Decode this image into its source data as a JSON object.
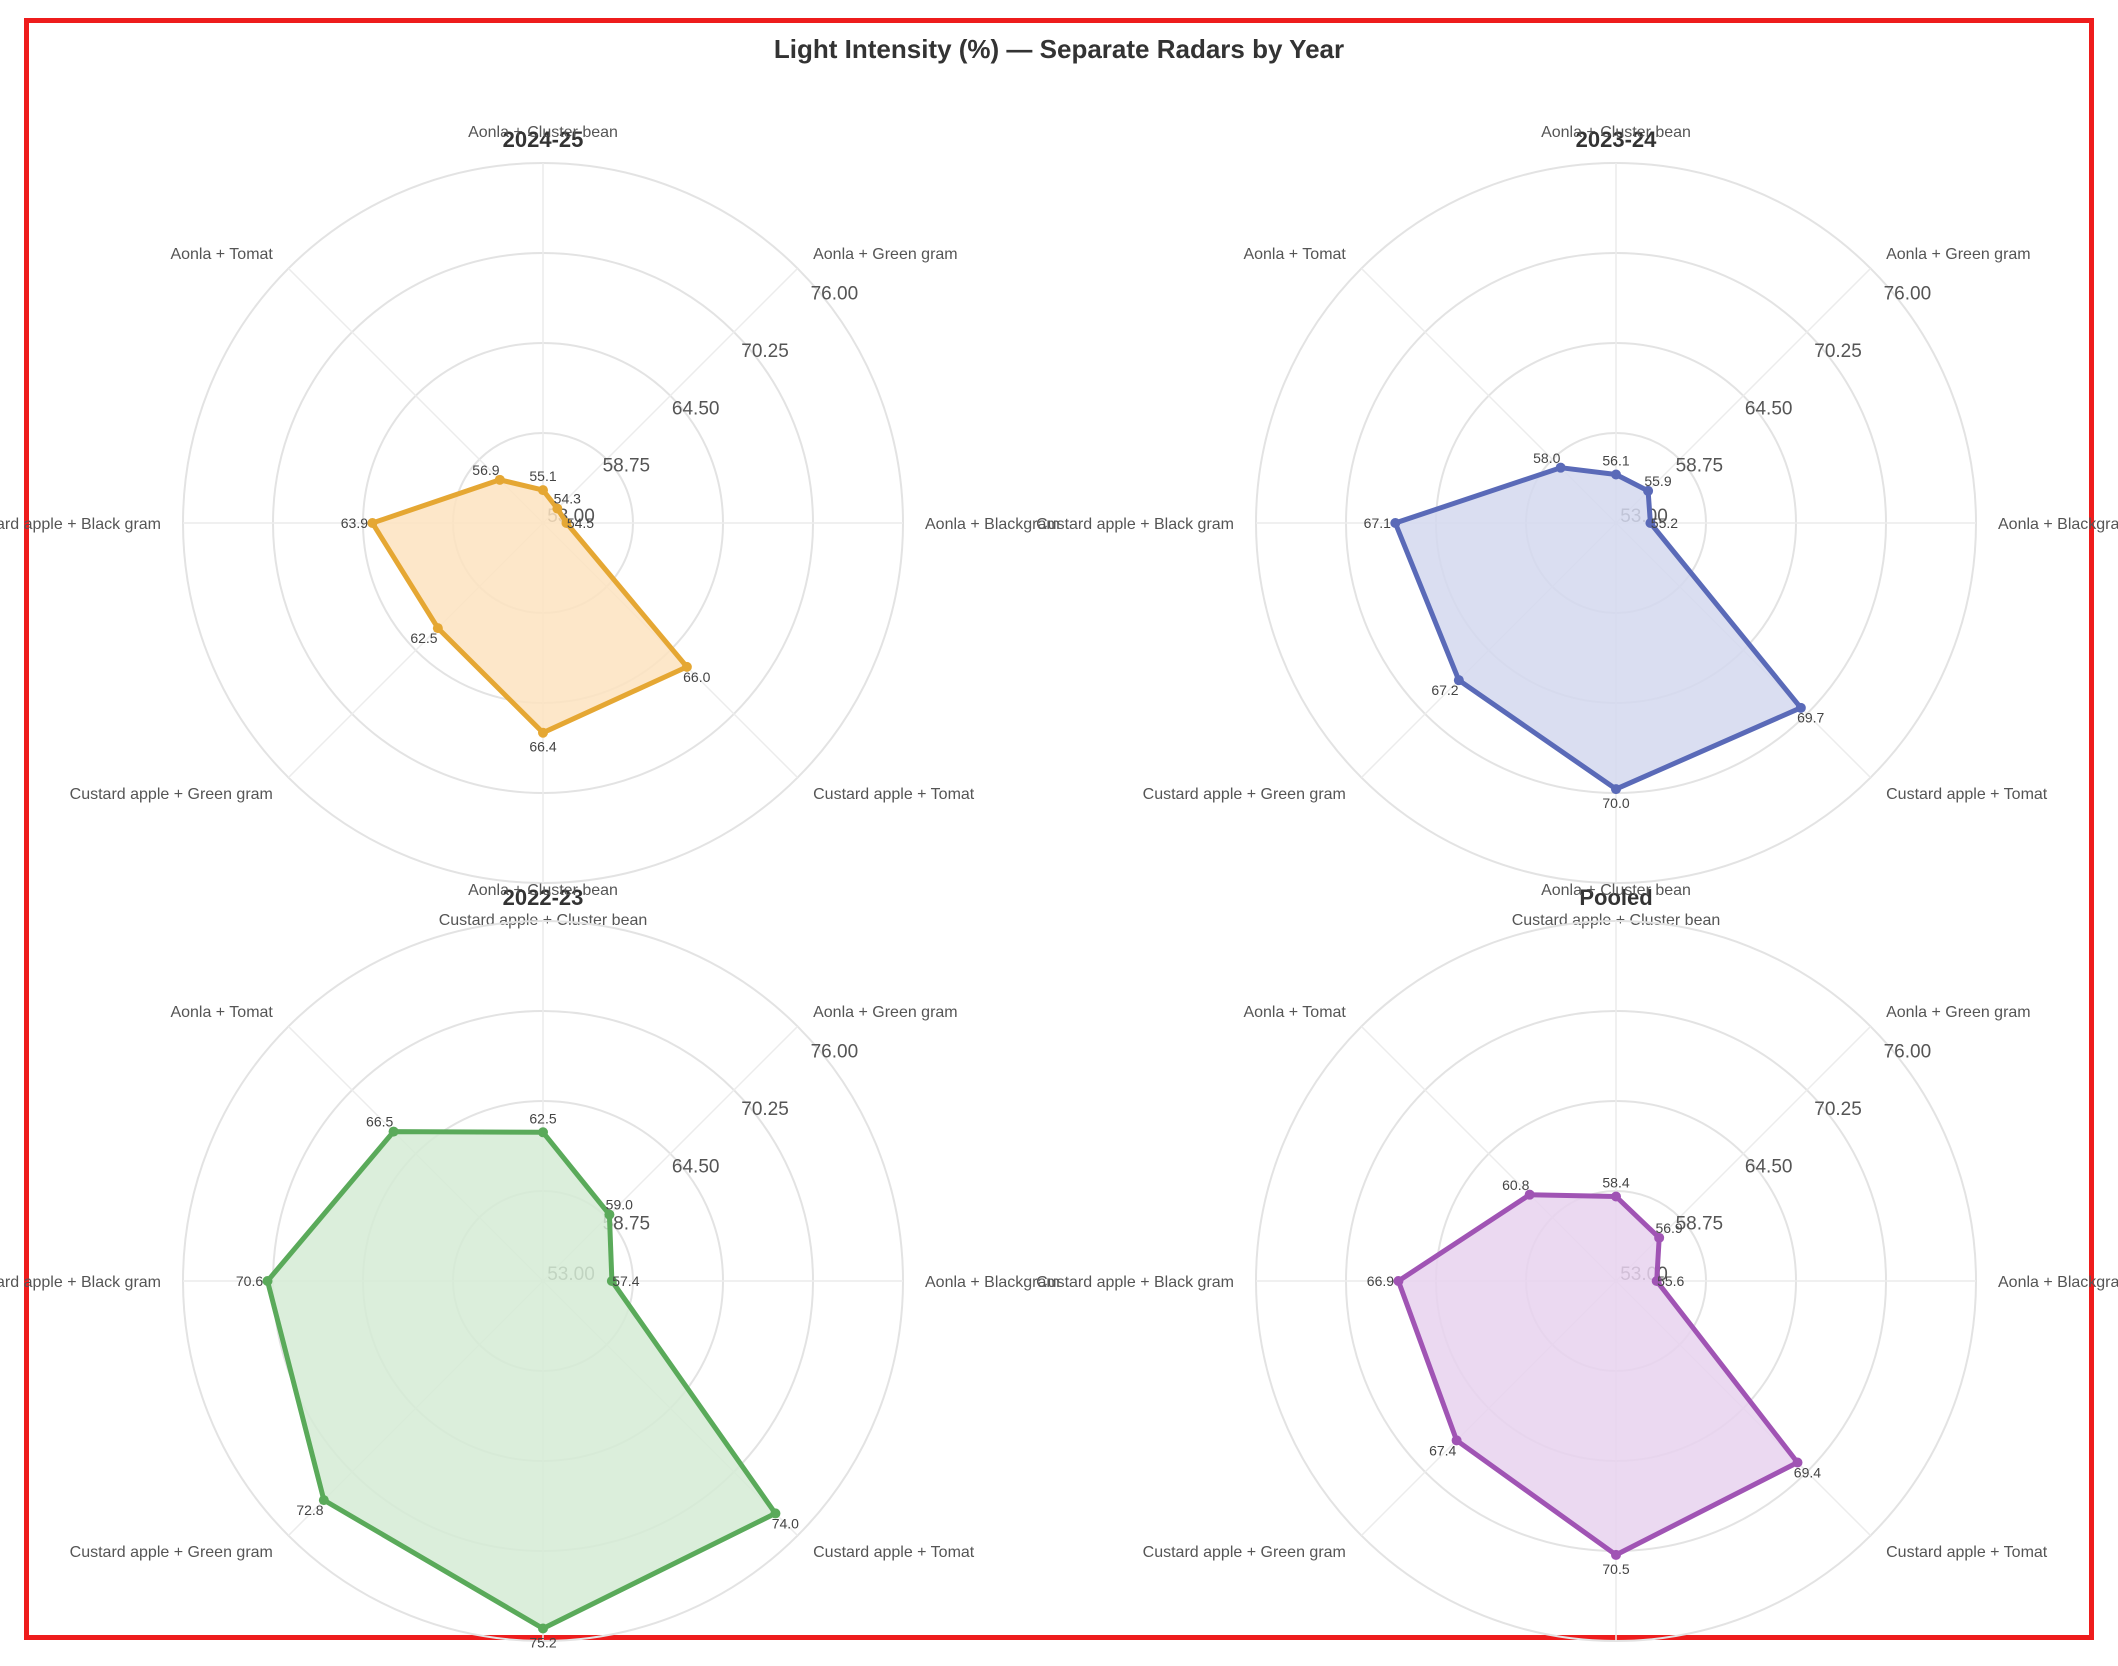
{
  "chart_data": {
    "type": "radar",
    "title": "Light Intensity (%) — Separate Radars by Year",
    "axes": [
      "Aonla + Cluster bean",
      "Aonla + Green gram",
      "Aonla + Blackgram",
      "Custard apple + Tomat",
      "Custard apple + Cluster bean",
      "Custard apple + Green gram",
      "Custard apple + Black gram",
      "Aonla + Tomat"
    ],
    "rlim": [
      53.0,
      76.0
    ],
    "tick_values": [
      53.0,
      58.75,
      64.5,
      70.25,
      76.0
    ],
    "tick_labels": [
      "53.00",
      "58.75",
      "64.50",
      "70.25",
      "76.00"
    ],
    "grid": true,
    "panels": [
      {
        "title": "2024-25",
        "color": "#e5a733",
        "fill": "#fde3bf",
        "values": [
          55.1,
          54.3,
          54.5,
          66.0,
          66.4,
          62.5,
          63.9,
          56.9
        ],
        "value_labels": [
          "55.1",
          "54.3",
          "54.5",
          "66.0",
          "66.4",
          "62.5",
          "63.9",
          "56.9"
        ]
      },
      {
        "title": "2023-24",
        "color": "#5a6ab8",
        "fill": "#d3d8ef",
        "values": [
          56.1,
          55.9,
          55.2,
          69.7,
          70.0,
          67.2,
          67.1,
          58.0
        ],
        "value_labels": [
          "56.1",
          "55.9",
          "55.2",
          "69.7",
          "70.0",
          "67.2",
          "67.1",
          "58.0"
        ]
      },
      {
        "title": "2022-23",
        "color": "#5aaa5a",
        "fill": "#d5ebd5",
        "values": [
          62.5,
          59.0,
          57.4,
          74.0,
          75.2,
          72.8,
          70.6,
          66.5
        ],
        "value_labels": [
          "62.5",
          "59.0",
          "57.4",
          "74.0",
          "75.2",
          "72.8",
          "70.6",
          "66.5"
        ]
      },
      {
        "title": "Pooled",
        "color": "#a054b4",
        "fill": "#e8d2ee",
        "values": [
          58.4,
          56.9,
          55.6,
          69.4,
          70.5,
          67.4,
          66.9,
          60.8
        ],
        "value_labels": [
          "58.4",
          "56.9",
          "55.6",
          "69.4",
          "70.5",
          "67.4",
          "66.9",
          "60.8"
        ]
      }
    ]
  }
}
